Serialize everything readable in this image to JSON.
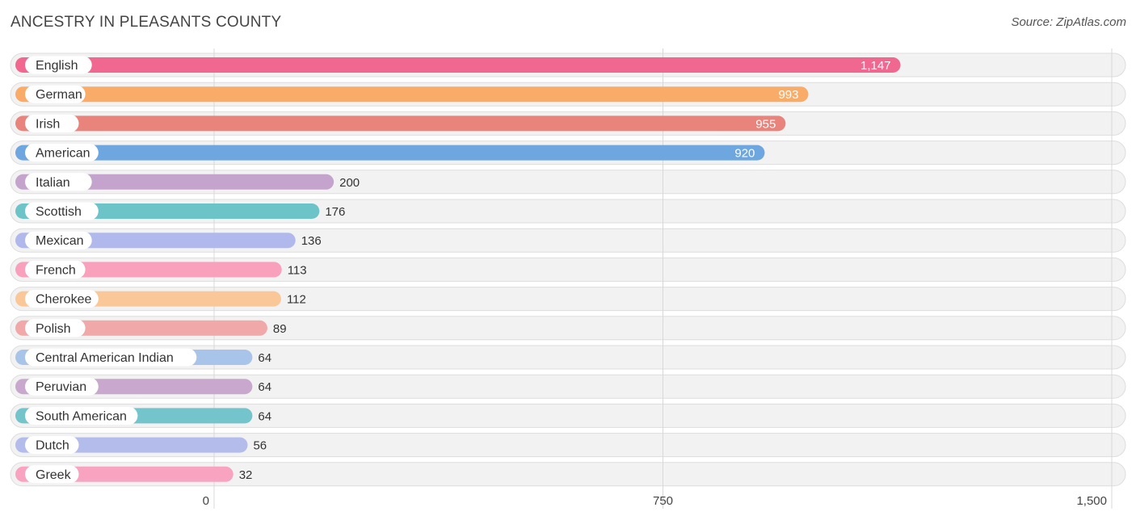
{
  "header": {
    "title": "ANCESTRY IN PLEASANTS COUNTY",
    "source": "Source: ZipAtlas.com"
  },
  "chart_data": {
    "type": "bar",
    "orientation": "horizontal",
    "title": "ANCESTRY IN PLEASANTS COUNTY",
    "xlabel": "",
    "ylabel": "",
    "xlim": [
      0,
      1500
    ],
    "ticks": [
      0,
      750,
      1500
    ],
    "tick_labels": [
      "0",
      "750",
      "1,500"
    ],
    "grid": true,
    "categories": [
      "English",
      "German",
      "Irish",
      "American",
      "Italian",
      "Scottish",
      "Mexican",
      "French",
      "Cherokee",
      "Polish",
      "Central American Indian",
      "Peruvian",
      "South American",
      "Dutch",
      "Greek"
    ],
    "values": [
      1147,
      993,
      955,
      920,
      200,
      176,
      136,
      113,
      112,
      89,
      64,
      64,
      64,
      56,
      32
    ],
    "value_labels": [
      "1,147",
      "993",
      "955",
      "920",
      "200",
      "176",
      "136",
      "113",
      "112",
      "89",
      "64",
      "64",
      "64",
      "56",
      "32"
    ],
    "colors": [
      "#f06890",
      "#f8ac68",
      "#e8847c",
      "#6ea6e0",
      "#c4a4cc",
      "#6cc4c8",
      "#b0b8ec",
      "#f8a0bc",
      "#fac898",
      "#f0a8a8",
      "#a8c4e8",
      "#c8a8cc",
      "#74c4cc",
      "#b4bcec",
      "#f8a4c0"
    ]
  }
}
